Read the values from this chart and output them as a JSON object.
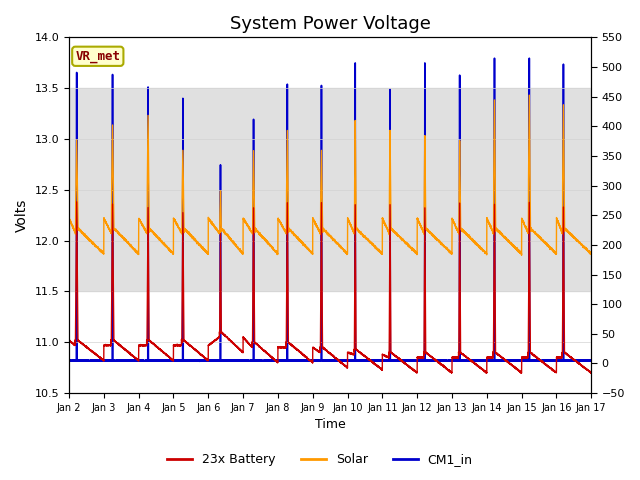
{
  "title": "System Power Voltage",
  "xlabel": "Time",
  "ylabel": "Volts",
  "ylim_left": [
    10.5,
    14.0
  ],
  "ylim_right": [
    -50,
    550
  ],
  "yticks_left": [
    10.5,
    11.0,
    11.5,
    12.0,
    12.5,
    13.0,
    13.5,
    14.0
  ],
  "yticks_right": [
    -50,
    0,
    50,
    100,
    150,
    200,
    250,
    300,
    350,
    400,
    450,
    500,
    550
  ],
  "n_days": 15,
  "xlim": [
    0,
    15
  ],
  "xtick_positions": [
    0,
    1,
    2,
    3,
    4,
    5,
    6,
    7,
    8,
    9,
    10,
    11,
    12,
    13,
    14,
    15
  ],
  "xtick_labels": [
    "Jan 2",
    "Jan 3",
    "Jan 4",
    "Jan 5",
    "Jan 6",
    "Jan 7",
    "Jan 8",
    "Jan 9",
    "Jan 10",
    "Jan 11",
    "Jan 12",
    "Jan 13",
    "Jan 14",
    "Jan 15",
    "Jan 16",
    "Jan 17"
  ],
  "legend_labels": [
    "23x Battery",
    "Solar",
    "CM1_in"
  ],
  "battery_color": "#cc0000",
  "solar_color": "#ff9900",
  "cm1_color": "#0000cc",
  "annotation_text": "VR_met",
  "annotation_fg": "#880000",
  "annotation_bg": "#ffffcc",
  "annotation_border": "#aaaa00",
  "band_color": "#e0e0e0",
  "band_ymin": 11.5,
  "band_ymax": 13.5,
  "title_fontsize": 13,
  "lw_battery": 1.0,
  "lw_solar": 1.0,
  "lw_cm1": 1.2,
  "night_low_cm1": 10.82,
  "night_low_bat_start": 11.0,
  "solar_night": 12.2
}
